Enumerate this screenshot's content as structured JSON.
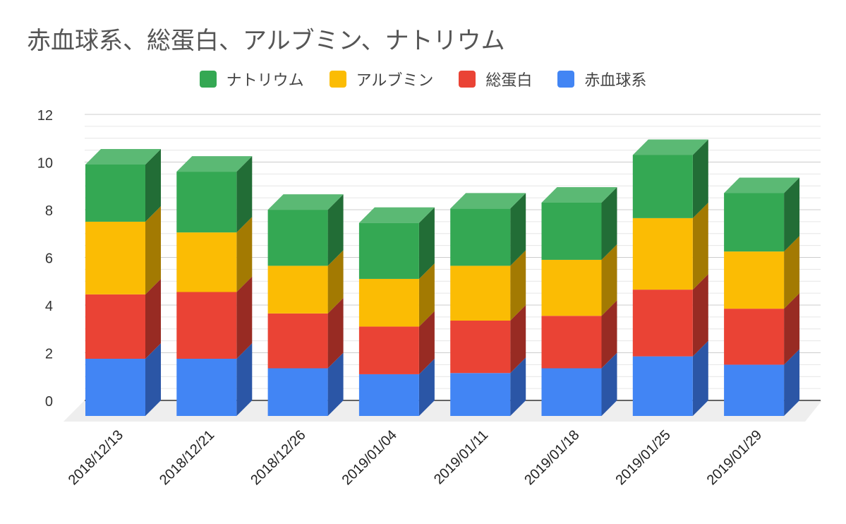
{
  "chart_data": {
    "type": "bar",
    "stacked": true,
    "three_d": true,
    "title": "赤血球系、総蛋白、アルブミン、ナトリウム",
    "legend_position": "top",
    "categories": [
      "2018/12/13",
      "2018/12/21",
      "2018/12/26",
      "2019/01/04",
      "2019/01/11",
      "2019/01/18",
      "2019/01/25",
      "2019/01/29"
    ],
    "ylim": [
      0,
      12
    ],
    "yticks": [
      "0",
      "2",
      "4",
      "6",
      "8",
      "10",
      "12"
    ],
    "grid": true,
    "series": [
      {
        "name": "赤血球系",
        "color": "#4285f4",
        "side_color": "#2b56a6",
        "values": [
          2.4,
          2.4,
          2.0,
          1.75,
          1.8,
          2.0,
          2.5,
          2.15
        ]
      },
      {
        "name": "総蛋白",
        "color": "#ea4335",
        "side_color": "#982b23",
        "values": [
          2.7,
          2.8,
          2.3,
          2.0,
          2.2,
          2.2,
          2.8,
          2.35
        ]
      },
      {
        "name": "アルブミン",
        "color": "#fbbc04",
        "side_color": "#a37a02",
        "values": [
          3.05,
          2.5,
          2.0,
          2.0,
          2.3,
          2.35,
          3.0,
          2.4
        ]
      },
      {
        "name": "ナトリウム",
        "color": "#34a853",
        "side_color": "#226d36",
        "values": [
          2.4,
          2.55,
          2.35,
          2.35,
          2.4,
          2.4,
          2.65,
          2.45
        ]
      }
    ],
    "legend_order": [
      "ナトリウム",
      "アルブミン",
      "総蛋白",
      "赤血球系"
    ]
  }
}
